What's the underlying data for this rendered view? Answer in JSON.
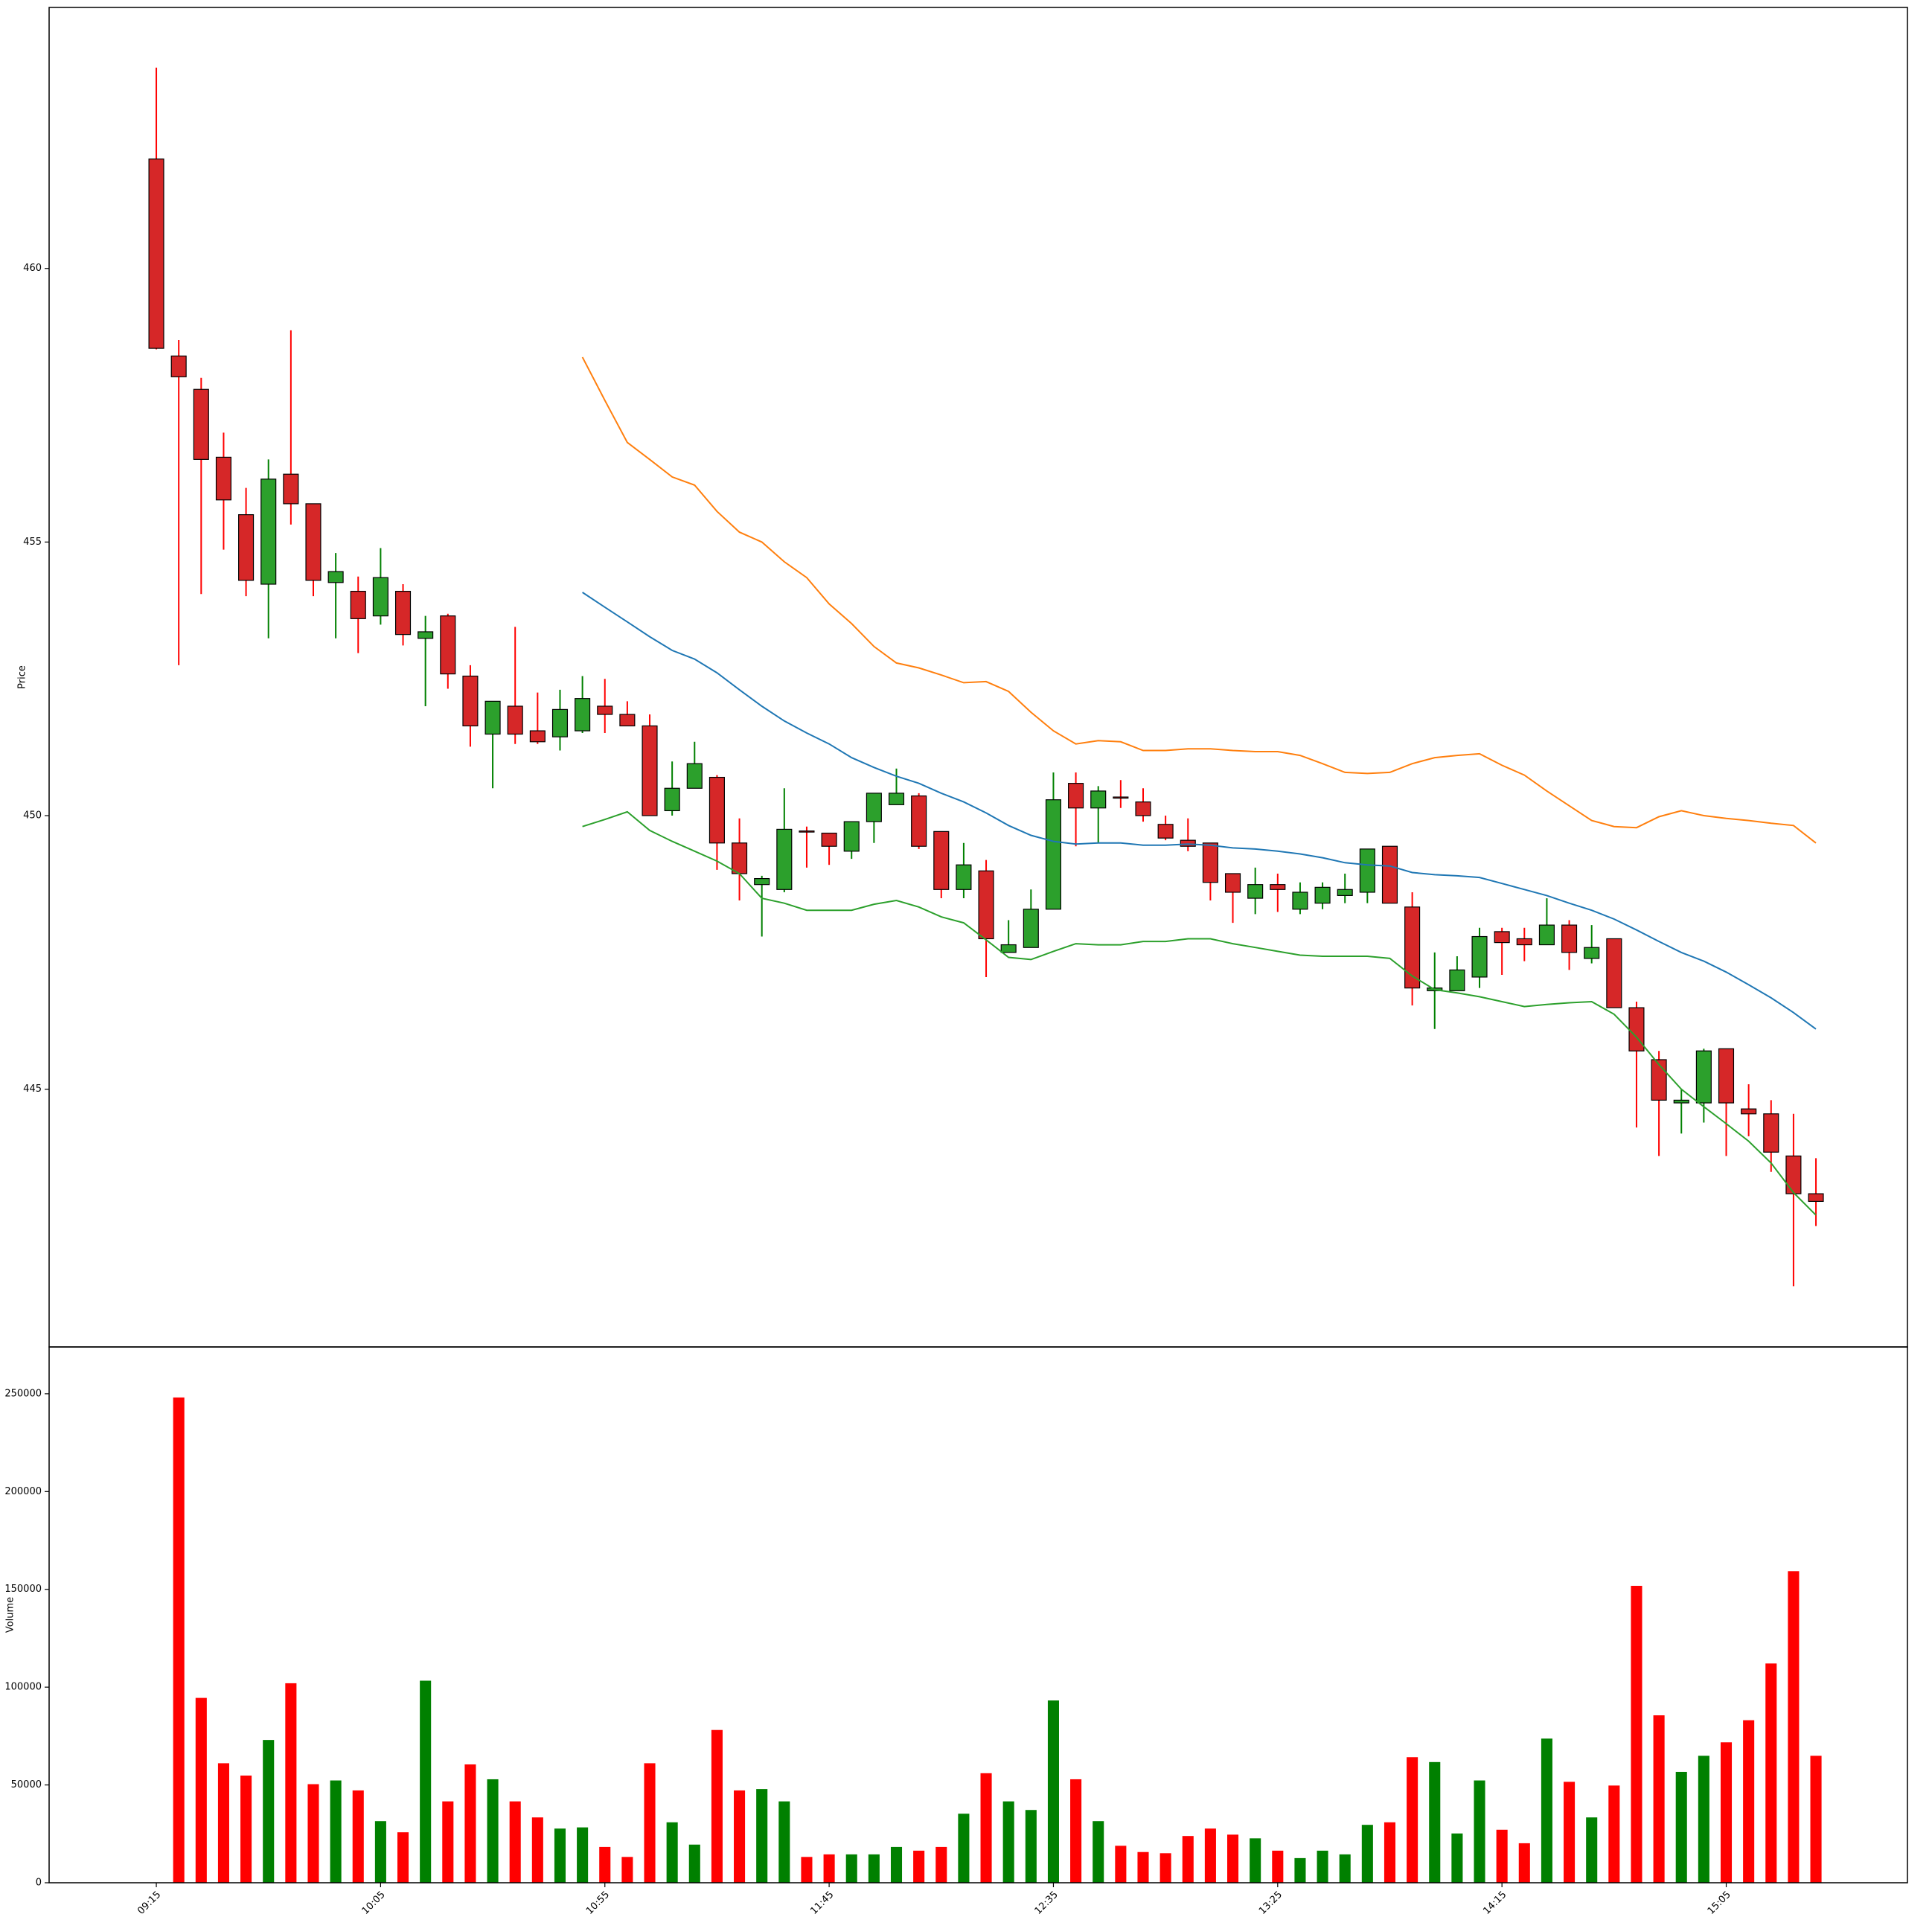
{
  "chart_data": [
    {
      "type": "candlestick",
      "ylabel": "Price",
      "up_color": "#008000",
      "down_color": "#ff0000",
      "up_body": "#2ca02c",
      "down_body": "#d62728",
      "ylim": [
        440.29,
        464.77
      ],
      "yticks": [
        445,
        450,
        455,
        460
      ],
      "open": [
        462.0,
        458.4,
        457.79,
        456.55,
        455.5,
        454.23,
        456.24,
        455.7,
        454.26,
        454.1,
        453.65,
        454.1,
        453.24,
        453.65,
        452.55,
        451.49,
        452.0,
        451.55,
        451.44,
        451.55,
        452.0,
        451.85,
        451.64,
        450.09,
        450.5,
        450.7,
        449.5,
        448.74,
        448.65,
        449.72,
        449.68,
        449.35,
        449.89,
        450.2,
        450.36,
        449.71,
        448.65,
        448.99,
        447.5,
        447.59,
        448.29,
        450.59,
        450.14,
        450.34,
        450.25,
        449.84,
        449.55,
        449.5,
        448.94,
        448.49,
        448.74,
        448.29,
        448.4,
        448.54,
        448.6,
        449.44,
        448.33,
        446.8,
        446.8,
        447.05,
        447.88,
        447.75,
        447.64,
        448.0,
        447.39,
        447.75,
        446.49,
        445.54,
        444.75,
        444.75,
        445.74,
        444.64,
        444.55,
        443.78,
        443.09
      ],
      "high": [
        463.67,
        458.69,
        458.0,
        457.0,
        455.99,
        456.51,
        458.87,
        455.7,
        454.8,
        454.37,
        454.89,
        454.23,
        453.65,
        453.69,
        452.75,
        452.09,
        453.45,
        452.25,
        452.3,
        452.55,
        452.5,
        452.09,
        451.85,
        450.99,
        451.35,
        450.74,
        449.95,
        448.9,
        450.5,
        449.8,
        449.68,
        449.89,
        450.41,
        450.86,
        450.41,
        449.71,
        449.5,
        449.19,
        448.09,
        448.65,
        450.79,
        450.79,
        450.54,
        450.65,
        450.5,
        450.0,
        449.95,
        449.5,
        448.94,
        449.05,
        448.94,
        448.78,
        448.78,
        448.94,
        449.39,
        449.44,
        448.6,
        447.5,
        447.43,
        447.95,
        447.95,
        447.95,
        448.49,
        448.09,
        448.0,
        447.75,
        446.6,
        445.7,
        445.0,
        445.74,
        445.74,
        445.09,
        444.8,
        444.55,
        443.74
      ],
      "low": [
        458.52,
        452.75,
        454.05,
        454.86,
        454.01,
        453.24,
        455.32,
        454.01,
        453.24,
        452.97,
        453.49,
        453.11,
        452.0,
        452.32,
        451.26,
        450.5,
        451.31,
        451.31,
        451.19,
        451.51,
        451.51,
        451.64,
        450.0,
        450.0,
        450.5,
        449.01,
        448.45,
        447.79,
        448.6,
        449.05,
        449.1,
        449.21,
        449.5,
        450.2,
        449.39,
        448.49,
        448.49,
        447.05,
        447.5,
        447.59,
        448.29,
        449.44,
        449.5,
        450.14,
        449.89,
        449.55,
        449.35,
        448.45,
        448.04,
        448.2,
        448.24,
        448.2,
        448.29,
        448.4,
        448.4,
        448.4,
        446.53,
        446.1,
        446.8,
        446.85,
        447.09,
        447.34,
        447.64,
        447.18,
        447.3,
        446.49,
        444.3,
        443.78,
        444.19,
        444.39,
        443.78,
        444.14,
        443.49,
        441.4,
        442.5
      ],
      "close": [
        458.54,
        458.02,
        456.51,
        455.77,
        454.3,
        456.15,
        455.7,
        454.3,
        454.46,
        453.6,
        454.35,
        453.31,
        453.36,
        452.59,
        451.64,
        452.09,
        451.49,
        451.35,
        451.94,
        452.14,
        451.85,
        451.64,
        450.0,
        450.5,
        450.95,
        449.5,
        448.94,
        448.85,
        449.75,
        449.7,
        449.44,
        449.89,
        450.41,
        450.41,
        449.44,
        448.65,
        449.1,
        447.75,
        447.64,
        448.29,
        450.29,
        450.14,
        450.45,
        450.32,
        450.0,
        449.59,
        449.44,
        448.78,
        448.6,
        448.74,
        448.65,
        448.6,
        448.69,
        448.65,
        449.39,
        448.4,
        446.85,
        446.85,
        447.18,
        447.79,
        447.68,
        447.64,
        448.0,
        447.5,
        447.59,
        446.49,
        445.7,
        444.8,
        444.8,
        445.7,
        444.75,
        444.55,
        443.85,
        443.09,
        442.95
      ],
      "lines": [
        {
          "color": "#1f77b4",
          "values": [
            null,
            null,
            null,
            null,
            null,
            null,
            null,
            null,
            null,
            null,
            null,
            null,
            null,
            null,
            null,
            null,
            null,
            null,
            null,
            454.08,
            453.81,
            453.54,
            453.27,
            453.02,
            452.86,
            452.61,
            452.3,
            452.0,
            451.73,
            451.51,
            451.31,
            451.06,
            450.88,
            450.72,
            450.59,
            450.41,
            450.25,
            450.05,
            449.82,
            449.64,
            449.53,
            449.48,
            449.5,
            449.5,
            449.46,
            449.46,
            449.48,
            449.46,
            449.41,
            449.39,
            449.35,
            449.3,
            449.23,
            449.14,
            449.1,
            449.08,
            448.96,
            448.92,
            448.9,
            448.87,
            448.76,
            448.65,
            448.54,
            448.4,
            448.27,
            448.11,
            447.91,
            447.7,
            447.5,
            447.34,
            447.14,
            446.91,
            446.67,
            446.4,
            446.1
          ]
        },
        {
          "color": "#ff7f0e",
          "values": [
            null,
            null,
            null,
            null,
            null,
            null,
            null,
            null,
            null,
            null,
            null,
            null,
            null,
            null,
            null,
            null,
            null,
            null,
            null,
            458.38,
            457.59,
            456.82,
            456.51,
            456.19,
            456.04,
            455.56,
            455.18,
            455.0,
            454.64,
            454.35,
            453.87,
            453.51,
            453.09,
            452.79,
            452.7,
            452.57,
            452.43,
            452.45,
            452.27,
            451.89,
            451.55,
            451.31,
            451.37,
            451.35,
            451.19,
            451.19,
            451.22,
            451.22,
            451.19,
            451.17,
            451.17,
            451.1,
            450.95,
            450.79,
            450.77,
            450.79,
            450.95,
            451.06,
            451.1,
            451.13,
            450.92,
            450.74,
            450.45,
            450.18,
            449.91,
            449.8,
            449.78,
            449.98,
            450.09,
            450.0,
            449.95,
            449.91,
            449.86,
            449.82,
            449.5
          ]
        },
        {
          "color": "#2ca02c",
          "values": [
            null,
            null,
            null,
            null,
            null,
            null,
            null,
            null,
            null,
            null,
            null,
            null,
            null,
            null,
            null,
            null,
            null,
            null,
            null,
            449.8,
            449.93,
            450.07,
            449.73,
            449.53,
            449.35,
            449.17,
            448.94,
            448.49,
            448.4,
            448.27,
            448.27,
            448.27,
            448.38,
            448.45,
            448.33,
            448.15,
            448.04,
            447.73,
            447.41,
            447.37,
            447.52,
            447.66,
            447.64,
            447.64,
            447.7,
            447.7,
            447.75,
            447.75,
            447.66,
            447.59,
            447.52,
            447.45,
            447.43,
            447.43,
            447.43,
            447.39,
            447.07,
            446.82,
            446.76,
            446.69,
            446.6,
            446.51,
            446.55,
            446.58,
            446.6,
            446.37,
            445.95,
            445.45,
            445.0,
            444.68,
            444.37,
            444.05,
            443.65,
            443.11,
            442.7
          ]
        }
      ]
    },
    {
      "type": "bar",
      "ylabel": "Volume",
      "up_color": "#008000",
      "down_color": "#ff0000",
      "ylim": [
        0,
        273930
      ],
      "yticks": [
        0,
        50000,
        100000,
        150000,
        200000,
        250000
      ],
      "categories": [
        "09:15",
        null,
        null,
        null,
        null,
        null,
        null,
        null,
        null,
        null,
        "10:05",
        null,
        null,
        null,
        null,
        null,
        null,
        null,
        null,
        null,
        "10:55",
        null,
        null,
        null,
        null,
        null,
        null,
        null,
        null,
        null,
        "11:45",
        null,
        null,
        null,
        null,
        null,
        null,
        null,
        null,
        null,
        "12:35",
        null,
        null,
        null,
        null,
        null,
        null,
        null,
        null,
        null,
        "13:25",
        null,
        null,
        null,
        null,
        null,
        null,
        null,
        null,
        null,
        "14:15",
        null,
        null,
        null,
        null,
        null,
        null,
        null,
        null,
        null,
        "15:05",
        null,
        null,
        null,
        null
      ],
      "values": [
        null,
        248100,
        94500,
        61100,
        54800,
        73000,
        102000,
        50400,
        52300,
        47200,
        31500,
        25800,
        103300,
        41600,
        60500,
        52900,
        41600,
        33400,
        27700,
        28300,
        18300,
        13200,
        61100,
        30900,
        19500,
        78100,
        47200,
        47900,
        41600,
        13200,
        14500,
        14500,
        14500,
        18300,
        16400,
        18300,
        35300,
        56000,
        41600,
        37200,
        93200,
        52900,
        31500,
        18900,
        15700,
        15100,
        23900,
        27700,
        24600,
        22700,
        16400,
        12600,
        16400,
        14500,
        29600,
        30900,
        64200,
        61700,
        25200,
        52300,
        27100,
        20200,
        73700,
        51600,
        33400,
        49700,
        151800,
        85600,
        56700,
        64900,
        71800,
        83100,
        112100,
        159300,
        64900
      ]
    }
  ]
}
